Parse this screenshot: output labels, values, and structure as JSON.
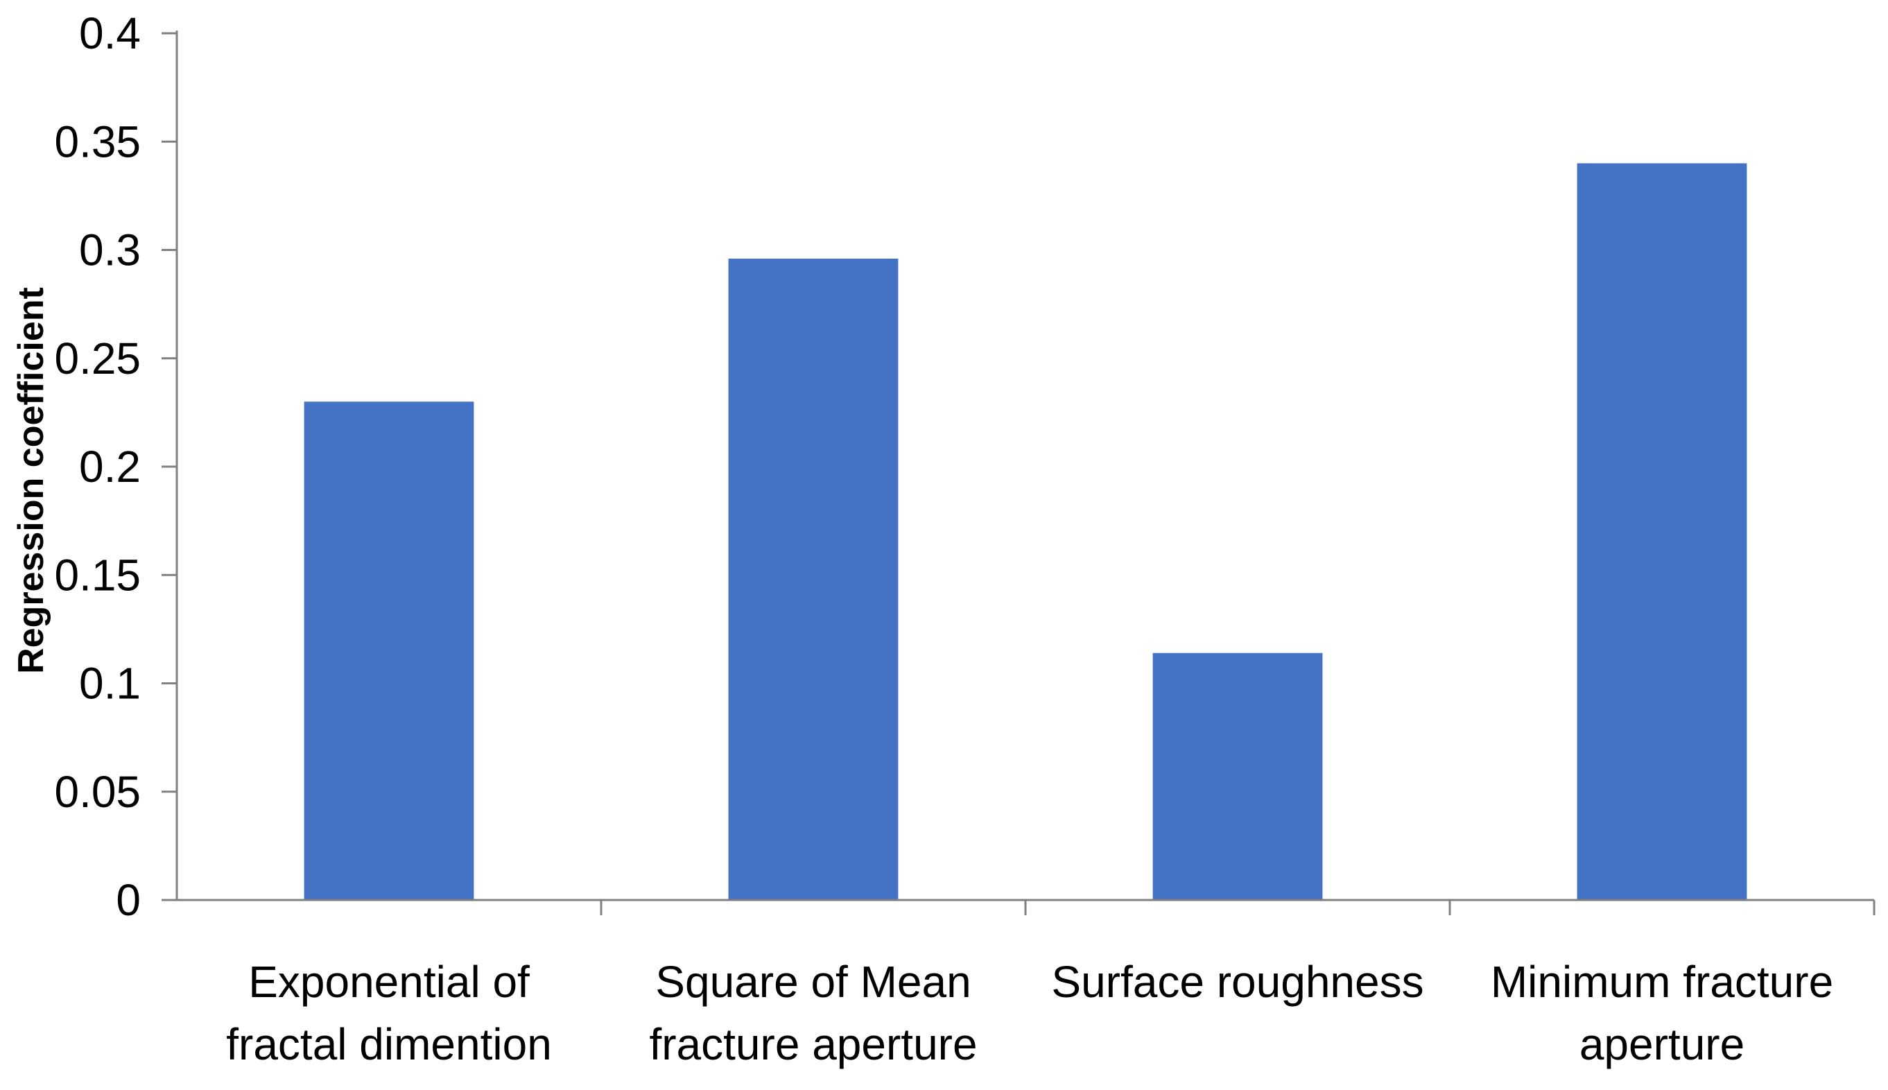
{
  "chart_data": {
    "type": "bar",
    "title": "",
    "xlabel": "",
    "ylabel": "Regression coefficient",
    "categories": [
      [
        "Exponential of",
        "fractal dimention"
      ],
      [
        "Square of Mean",
        "fracture aperture"
      ],
      [
        "Surface roughness"
      ],
      [
        "Minimum fracture",
        "aperture"
      ]
    ],
    "values": [
      0.23,
      0.296,
      0.114,
      0.34
    ],
    "ylim": [
      0,
      0.4
    ],
    "yticks": [
      "0",
      "0.05",
      "0.1",
      "0.15",
      "0.2",
      "0.25",
      "0.3",
      "0.35",
      "0.4"
    ],
    "bar_color": "#4472C4",
    "axis_color": "#808080",
    "grid": false,
    "legend": "none"
  }
}
